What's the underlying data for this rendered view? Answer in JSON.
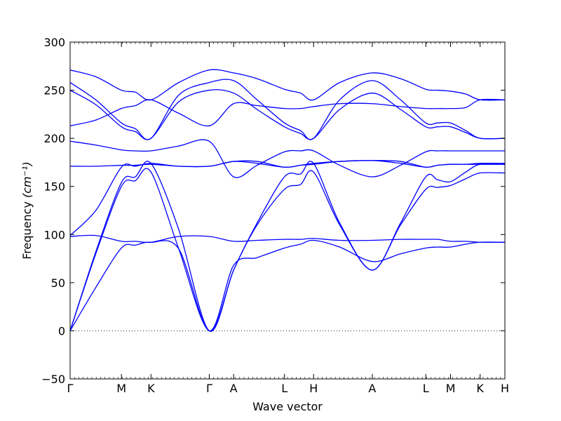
{
  "chart_data": {
    "type": "line",
    "xlabel": "Wave vector",
    "ylabel": "Frequency",
    "ylabel_unit": "(cm⁻¹)",
    "ylim": [
      -50,
      300
    ],
    "yticks": [
      -50,
      0,
      50,
      100,
      150,
      200,
      250,
      300
    ],
    "ytick_labels": [
      "−50",
      "0",
      "50",
      "100",
      "150",
      "200",
      "250",
      "300"
    ],
    "xlim": [
      0,
      1
    ],
    "k_points": [
      {
        "label": "Γ",
        "x": 0.0
      },
      {
        "label": "M",
        "x": 0.118
      },
      {
        "label": "K",
        "x": 0.186
      },
      {
        "label": "Γ",
        "x": 0.32
      },
      {
        "label": "A",
        "x": 0.376
      },
      {
        "label": "L",
        "x": 0.493
      },
      {
        "label": "H",
        "x": 0.56
      },
      {
        "label": "A",
        "x": 0.695
      },
      {
        "label": "L",
        "x": 0.818
      },
      {
        "label": "M",
        "x": 0.875
      },
      {
        "label": "K",
        "x": 0.943
      },
      {
        "label": "H",
        "x": 1.0
      }
    ],
    "zero_line": {
      "y": 0,
      "style": "dotted"
    },
    "grid": false,
    "series_color": "#0000ff",
    "series": [
      {
        "x": [
          0,
          0.059,
          0.118,
          0.15,
          0.186,
          0.25,
          0.32,
          0.376,
          0.43,
          0.493,
          0.53,
          0.56,
          0.62,
          0.695,
          0.76,
          0.818,
          0.845,
          0.875,
          0.91,
          0.943,
          1.0
        ],
        "values": [
          0,
          45,
          86,
          89,
          92,
          85,
          0,
          68,
          76,
          86,
          90,
          94,
          87,
          72,
          80,
          86,
          87,
          87,
          90,
          92,
          92
        ]
      },
      {
        "x": [
          0,
          0.059,
          0.118,
          0.15,
          0.186,
          0.25,
          0.32,
          0.376,
          0.43,
          0.493,
          0.53,
          0.56,
          0.62,
          0.695,
          0.76,
          0.818,
          0.845,
          0.875,
          0.91,
          0.943,
          1.0
        ],
        "values": [
          0,
          80,
          150,
          156,
          165,
          85,
          0,
          63,
          110,
          147,
          152,
          165,
          110,
          63,
          110,
          147,
          149,
          151,
          158,
          164,
          164
        ]
      },
      {
        "x": [
          0,
          0.059,
          0.118,
          0.15,
          0.186,
          0.25,
          0.32,
          0.376,
          0.43,
          0.493,
          0.53,
          0.56,
          0.62,
          0.695,
          0.76,
          0.818,
          0.845,
          0.875,
          0.91,
          0.943,
          1.0
        ],
        "values": [
          0,
          82,
          154,
          160,
          174,
          105,
          0,
          63,
          112,
          160,
          163,
          174,
          112,
          63,
          112,
          160,
          157,
          155,
          165,
          173,
          173
        ]
      },
      {
        "x": [
          0,
          0.059,
          0.118,
          0.15,
          0.186,
          0.25,
          0.32,
          0.376,
          0.43,
          0.493,
          0.53,
          0.56,
          0.62,
          0.695,
          0.76,
          0.818,
          0.845,
          0.875,
          0.91,
          0.943,
          1.0
        ],
        "values": [
          98,
          99,
          93,
          93,
          92,
          98,
          98,
          93,
          94,
          95,
          95,
          96,
          94,
          94,
          95,
          95,
          95,
          93,
          93,
          92,
          92
        ]
      },
      {
        "x": [
          0,
          0.059,
          0.118,
          0.15,
          0.186,
          0.25,
          0.32,
          0.376,
          0.43,
          0.493,
          0.53,
          0.56,
          0.62,
          0.695,
          0.76,
          0.818,
          0.845,
          0.875,
          0.91,
          0.943,
          1.0
        ],
        "values": [
          99,
          125,
          170,
          171,
          174,
          171,
          171,
          176,
          174,
          170,
          172,
          174,
          176,
          177,
          174,
          170,
          172,
          173,
          173,
          174,
          174
        ]
      },
      {
        "x": [
          0,
          0.059,
          0.118,
          0.15,
          0.186,
          0.25,
          0.32,
          0.376,
          0.43,
          0.493,
          0.53,
          0.56,
          0.62,
          0.695,
          0.76,
          0.818,
          0.845,
          0.875,
          0.91,
          0.943,
          1.0
        ],
        "values": [
          171,
          171,
          172,
          172,
          173,
          171,
          171,
          176,
          176,
          170,
          172,
          173,
          176,
          177,
          176,
          170,
          172,
          173,
          173,
          173,
          173
        ]
      },
      {
        "x": [
          0,
          0.059,
          0.118,
          0.15,
          0.186,
          0.25,
          0.32,
          0.376,
          0.43,
          0.493,
          0.53,
          0.56,
          0.62,
          0.695,
          0.76,
          0.818,
          0.845,
          0.875,
          0.91,
          0.943,
          1.0
        ],
        "values": [
          197,
          193,
          188,
          187,
          187,
          192,
          197,
          160,
          172,
          186,
          187,
          187,
          172,
          160,
          172,
          186,
          187,
          187,
          187,
          187,
          187
        ]
      },
      {
        "x": [
          0,
          0.059,
          0.118,
          0.15,
          0.186,
          0.25,
          0.32,
          0.376,
          0.43,
          0.493,
          0.53,
          0.56,
          0.62,
          0.695,
          0.76,
          0.818,
          0.845,
          0.875,
          0.91,
          0.943,
          1.0
        ],
        "values": [
          213,
          219,
          231,
          234,
          240,
          226,
          213,
          236,
          234,
          231,
          231,
          233,
          236,
          236,
          233,
          231,
          231,
          231,
          232,
          240,
          240
        ]
      },
      {
        "x": [
          0,
          0.059,
          0.118,
          0.15,
          0.186,
          0.25,
          0.32,
          0.376,
          0.43,
          0.493,
          0.53,
          0.56,
          0.62,
          0.695,
          0.76,
          0.818,
          0.845,
          0.875,
          0.91,
          0.943,
          1.0
        ],
        "values": [
          250,
          235,
          212,
          207,
          200,
          238,
          250,
          247,
          230,
          212,
          205,
          200,
          230,
          247,
          230,
          212,
          212,
          212,
          206,
          200,
          200
        ]
      },
      {
        "x": [
          0,
          0.059,
          0.118,
          0.15,
          0.186,
          0.25,
          0.32,
          0.376,
          0.43,
          0.493,
          0.53,
          0.56,
          0.62,
          0.695,
          0.76,
          0.818,
          0.845,
          0.875,
          0.91,
          0.943,
          1.0
        ],
        "values": [
          258,
          240,
          216,
          210,
          200,
          245,
          258,
          260,
          240,
          216,
          208,
          200,
          240,
          260,
          240,
          216,
          216,
          216,
          208,
          200,
          200
        ]
      },
      {
        "x": [
          0,
          0.059,
          0.118,
          0.15,
          0.186,
          0.25,
          0.32,
          0.376,
          0.43,
          0.493,
          0.53,
          0.56,
          0.62,
          0.695,
          0.76,
          0.818,
          0.845,
          0.875,
          0.91,
          0.943,
          1.0
        ],
        "values": [
          271,
          264,
          250,
          248,
          240,
          258,
          271,
          268,
          262,
          251,
          247,
          240,
          258,
          268,
          262,
          251,
          250,
          249,
          246,
          240,
          240
        ]
      }
    ]
  }
}
